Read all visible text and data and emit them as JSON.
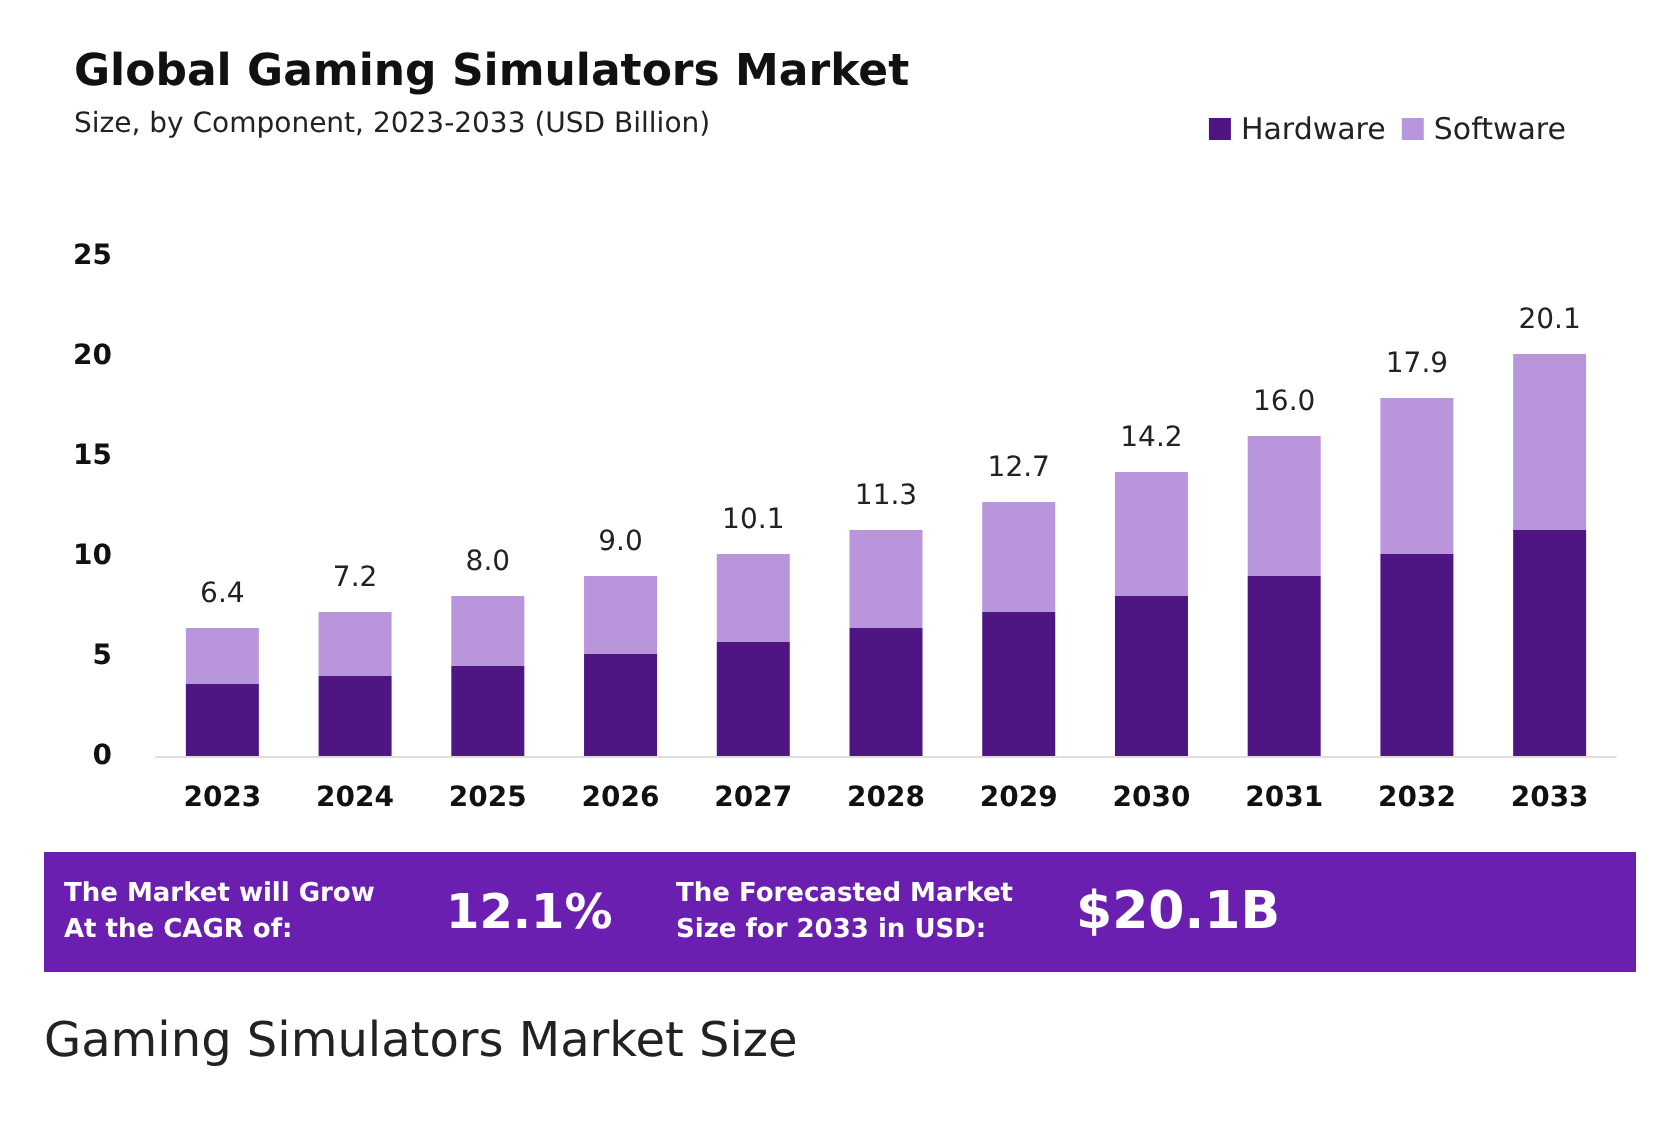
{
  "chart_data": {
    "type": "bar",
    "stacked": true,
    "title": "Global Gaming Simulators Market",
    "subtitle": "Size, by Component, 2023-2033 (USD Billion)",
    "categories": [
      "2023",
      "2024",
      "2025",
      "2026",
      "2027",
      "2028",
      "2029",
      "2030",
      "2031",
      "2032",
      "2033"
    ],
    "series": [
      {
        "name": "Hardware",
        "color": "#4f1582",
        "values": [
          3.6,
          4.0,
          4.5,
          5.1,
          5.7,
          6.4,
          7.2,
          8.0,
          9.0,
          10.1,
          11.3
        ]
      },
      {
        "name": "Software",
        "color": "#b996dc",
        "values": [
          2.8,
          3.2,
          3.5,
          3.9,
          4.4,
          4.9,
          5.5,
          6.2,
          7.0,
          7.8,
          8.8
        ]
      }
    ],
    "totals": [
      "6.4",
      "7.2",
      "8.0",
      "9.0",
      "10.1",
      "11.3",
      "12.7",
      "14.2",
      "16.0",
      "17.9",
      "20.1"
    ],
    "ylim": [
      0,
      25
    ],
    "yticks": [
      0,
      5,
      10,
      15,
      20,
      25
    ],
    "grid": false,
    "legend": "top right",
    "annotations": [
      "The Market will Grow\nAt the CAGR of:",
      "12.1%",
      "The Forecasted Market\nSize for 2033 in USD:",
      "$20.1B",
      "Gaming Simulators Market Size"
    ]
  }
}
